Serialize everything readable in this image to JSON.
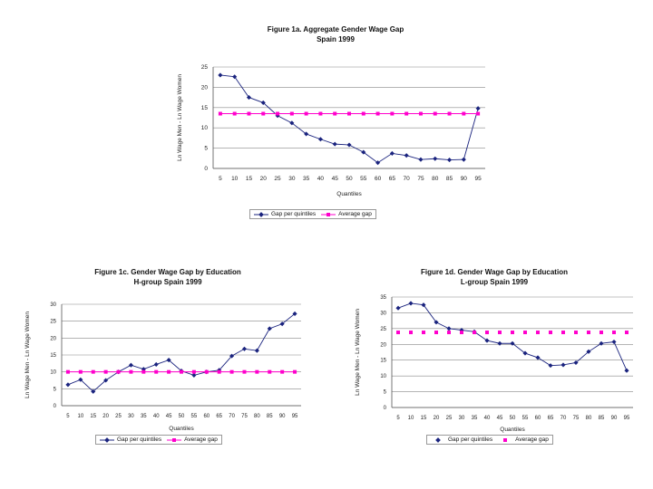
{
  "colors": {
    "gap": "#1a237e",
    "avg": "#ff00cc",
    "grid": "#888888"
  },
  "chart_data": [
    {
      "id": "a",
      "type": "line",
      "title": "Figure 1a. Aggregate Gender Wage Gap",
      "subtitle": "Spain 1999",
      "xlabel": "Quantiles",
      "ylabel": "Ln Wage Men - Ln Wage Women",
      "ylim": [
        0,
        25
      ],
      "yticks": [
        0,
        5,
        10,
        15,
        20,
        25
      ],
      "categories": [
        "5",
        "10",
        "15",
        "20",
        "25",
        "30",
        "35",
        "40",
        "45",
        "50",
        "55",
        "60",
        "65",
        "70",
        "75",
        "80",
        "85",
        "90",
        "95"
      ],
      "series": [
        {
          "name": "Gap per quintiles",
          "values": [
            23.0,
            22.6,
            17.5,
            16.2,
            13.0,
            11.2,
            8.5,
            7.2,
            6.0,
            5.8,
            4.0,
            1.4,
            3.7,
            3.2,
            2.2,
            2.4,
            2.1,
            2.2,
            14.8
          ]
        },
        {
          "name": "Average gap",
          "values": [
            13.5,
            13.5,
            13.5,
            13.5,
            13.5,
            13.5,
            13.5,
            13.5,
            13.5,
            13.5,
            13.5,
            13.5,
            13.5,
            13.5,
            13.5,
            13.5,
            13.5,
            13.5,
            13.5
          ]
        }
      ],
      "legend": [
        "Gap per quintiles",
        "Average gap"
      ]
    },
    {
      "id": "c",
      "type": "line",
      "title": "Figure 1c. Gender Wage Gap by Education",
      "subtitle": "H-group Spain 1999",
      "xlabel": "Quantiles",
      "ylabel": "Ln Wage Men - Ln Wage Women",
      "ylim": [
        0,
        30
      ],
      "yticks": [
        0,
        5,
        10,
        15,
        20,
        25,
        30
      ],
      "categories": [
        "5",
        "10",
        "15",
        "20",
        "25",
        "30",
        "35",
        "40",
        "45",
        "50",
        "55",
        "60",
        "65",
        "70",
        "75",
        "80",
        "85",
        "90",
        "95"
      ],
      "series": [
        {
          "name": "Gap per quintiles",
          "values": [
            6.2,
            7.7,
            4.2,
            7.5,
            10.0,
            12.0,
            10.8,
            12.2,
            13.5,
            10.3,
            9.0,
            10.0,
            10.5,
            14.7,
            16.8,
            16.3,
            22.8,
            24.2,
            27.2
          ]
        },
        {
          "name": "Average gap",
          "values": [
            10.0,
            10.0,
            10.0,
            10.0,
            10.0,
            10.0,
            10.0,
            10.0,
            10.0,
            10.0,
            10.0,
            10.0,
            10.0,
            10.0,
            10.0,
            10.0,
            10.0,
            10.0,
            10.0
          ]
        }
      ],
      "legend": [
        "Gap per quintiles",
        "Average gap"
      ]
    },
    {
      "id": "d",
      "type": "line",
      "title": "Figure 1d. Gender Wage Gap by Education",
      "subtitle": "L-group Spain 1999",
      "xlabel": "Quantiles",
      "ylabel": "Ln Wage Men - Ln Wage Women",
      "ylim": [
        0,
        35
      ],
      "yticks": [
        0,
        5,
        10,
        15,
        20,
        25,
        30,
        35
      ],
      "categories": [
        "5",
        "10",
        "15",
        "20",
        "25",
        "30",
        "35",
        "40",
        "45",
        "50",
        "55",
        "60",
        "65",
        "70",
        "75",
        "80",
        "85",
        "90",
        "95"
      ],
      "series": [
        {
          "name": "Gap per quintiles",
          "values": [
            31.5,
            33.0,
            32.5,
            27.0,
            25.0,
            24.5,
            24.0,
            21.2,
            20.3,
            20.3,
            17.2,
            15.8,
            13.3,
            13.5,
            14.2,
            17.7,
            20.3,
            20.8,
            11.7
          ]
        },
        {
          "name": "Average gap",
          "values": [
            23.8,
            23.8,
            23.8,
            23.8,
            23.8,
            23.8,
            23.8,
            23.8,
            23.8,
            23.8,
            23.8,
            23.8,
            23.8,
            23.8,
            23.8,
            23.8,
            23.8,
            23.8,
            23.8
          ]
        }
      ],
      "legend": [
        "Gap per quintiles",
        "Average gap"
      ]
    }
  ]
}
